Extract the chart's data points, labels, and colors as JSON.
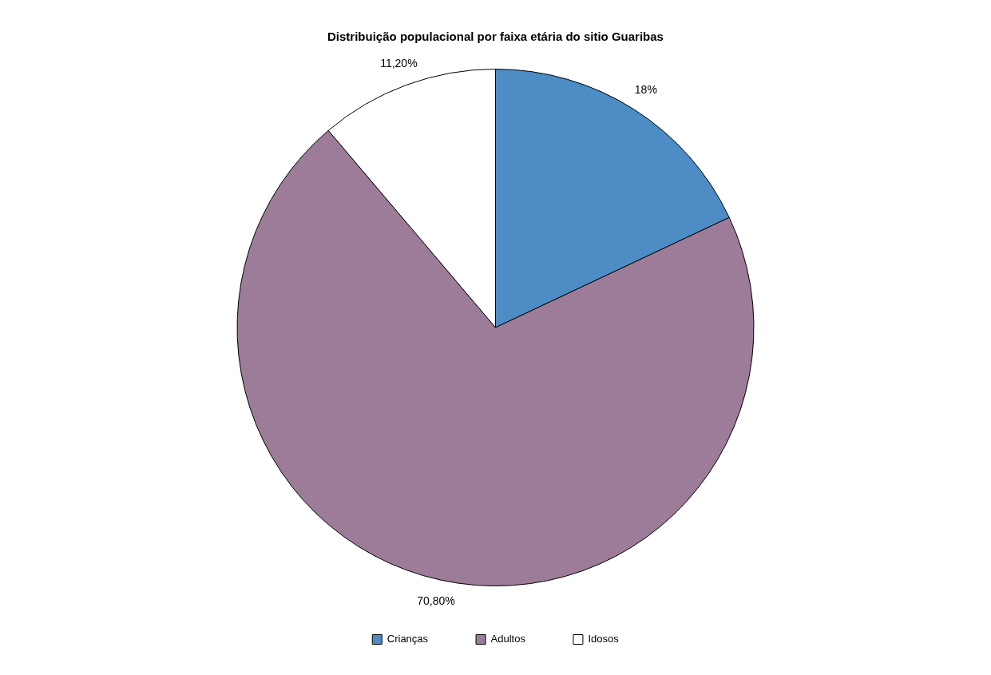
{
  "chart_data": {
    "type": "pie",
    "title": "Distribuição populacional por faixa etária do sitio Guaribas",
    "categories": [
      "Crianças",
      "Adultos",
      "Idosos"
    ],
    "values": [
      18,
      70.8,
      11.2
    ],
    "colors": [
      "#4d8cc4",
      "#9c7c98",
      "#ffffff"
    ],
    "value_labels": [
      "18%",
      "70,80%",
      "11,20%"
    ],
    "legend": "bottom"
  }
}
